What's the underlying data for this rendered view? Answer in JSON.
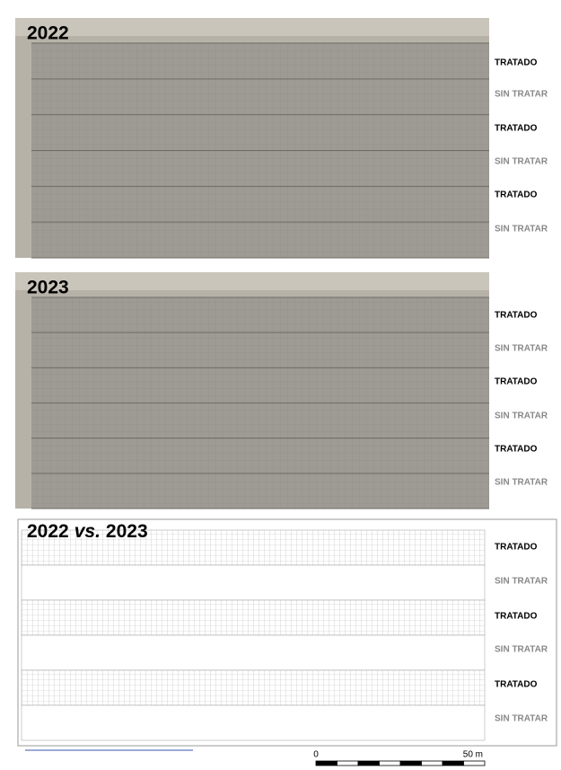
{
  "panels": [
    {
      "title": "2022",
      "rows": [
        "TRATADO",
        "SIN TRATAR",
        "TRATADO",
        "SIN TRATAR",
        "TRATADO",
        "SIN TRATAR"
      ]
    },
    {
      "title": "2023",
      "rows": [
        "TRATADO",
        "SIN TRATAR",
        "TRATADO",
        "SIN TRATAR",
        "TRATADO",
        "SIN TRATAR"
      ]
    },
    {
      "title": {
        "year_a": "2022",
        "connector": "vs.",
        "year_b": "2023"
      },
      "rows": [
        "TRATADO",
        "SIN TRATAR",
        "TRATADO",
        "SIN TRATAR",
        "TRATADO",
        "SIN TRATAR"
      ]
    }
  ],
  "scale_bar": {
    "start": "0",
    "end": "50 m"
  }
}
